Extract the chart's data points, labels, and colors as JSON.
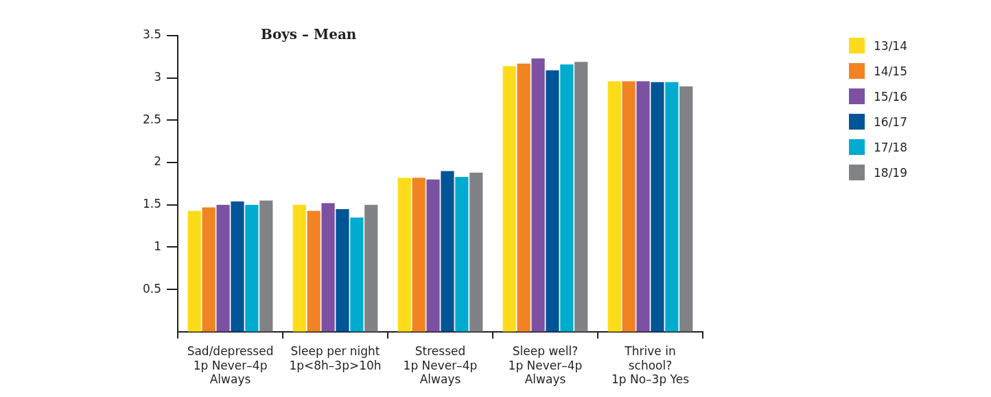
{
  "chart_data": {
    "type": "bar",
    "title": "Boys – Mean",
    "categories": [
      "Sad/depressed\n1p Never–4p\nAlways",
      "Sleep per night\n1p<8h–3p>10h",
      "Stressed\n1p Never–4p\nAlways",
      "Sleep well?\n1p Never–4p\nAlways",
      "Thrive in\nschool?\n1p No–3p Yes"
    ],
    "series": [
      {
        "name": "13/14",
        "color": "#fcdc1a",
        "values": [
          1.43,
          1.5,
          1.82,
          3.14,
          2.96
        ]
      },
      {
        "name": "14/15",
        "color": "#f28322",
        "values": [
          1.47,
          1.43,
          1.82,
          3.17,
          2.96
        ]
      },
      {
        "name": "15/16",
        "color": "#7c51a1",
        "values": [
          1.5,
          1.52,
          1.8,
          3.23,
          2.96
        ]
      },
      {
        "name": "16/17",
        "color": "#005596",
        "values": [
          1.54,
          1.45,
          1.9,
          3.09,
          2.95
        ]
      },
      {
        "name": "17/18",
        "color": "#00abd0",
        "values": [
          1.5,
          1.35,
          1.83,
          3.16,
          2.95
        ]
      },
      {
        "name": "18/19",
        "color": "#808285",
        "values": [
          1.55,
          1.5,
          1.88,
          3.19,
          2.9
        ]
      }
    ],
    "ylim": [
      0,
      3.5
    ],
    "yticks": [
      0.5,
      1,
      1.5,
      2,
      2.5,
      3,
      3.5
    ],
    "grid": false,
    "legend": "top right"
  }
}
